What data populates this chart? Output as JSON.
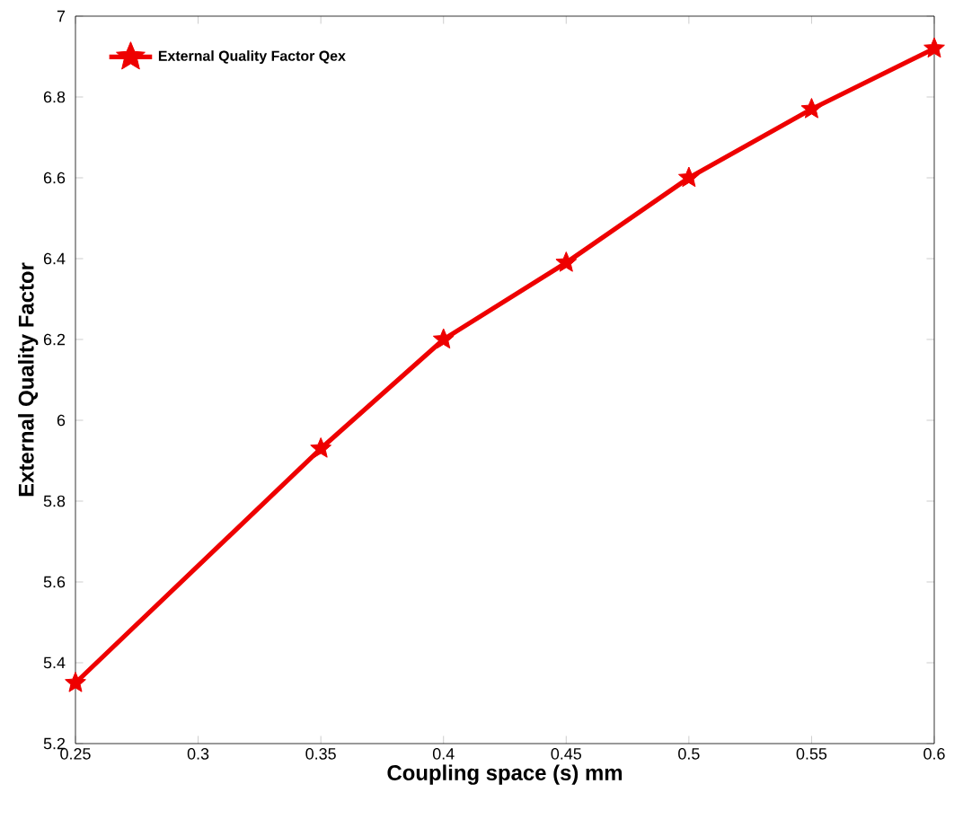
{
  "chart_data": {
    "type": "line",
    "xlabel": "Coupling space (s) mm",
    "ylabel": "External Quality Factor",
    "x": [
      0.25,
      0.35,
      0.4,
      0.45,
      0.5,
      0.55,
      0.6
    ],
    "series": [
      {
        "name": "External Quality Factor Qex",
        "color": "#ee0000",
        "values": [
          5.35,
          5.93,
          6.2,
          6.39,
          6.6,
          6.77,
          6.92
        ]
      }
    ],
    "xlim": [
      0.25,
      0.6
    ],
    "xticks": [
      0.25,
      0.3,
      0.35,
      0.4,
      0.45,
      0.5,
      0.55,
      0.6
    ],
    "ylim": [
      5.2,
      7
    ],
    "yticks": [
      5.2,
      5.4,
      5.6,
      5.8,
      6,
      6.2,
      6.4,
      6.6,
      6.8,
      7
    ],
    "legend": "top left",
    "marker": "star",
    "line_style": "solid"
  }
}
